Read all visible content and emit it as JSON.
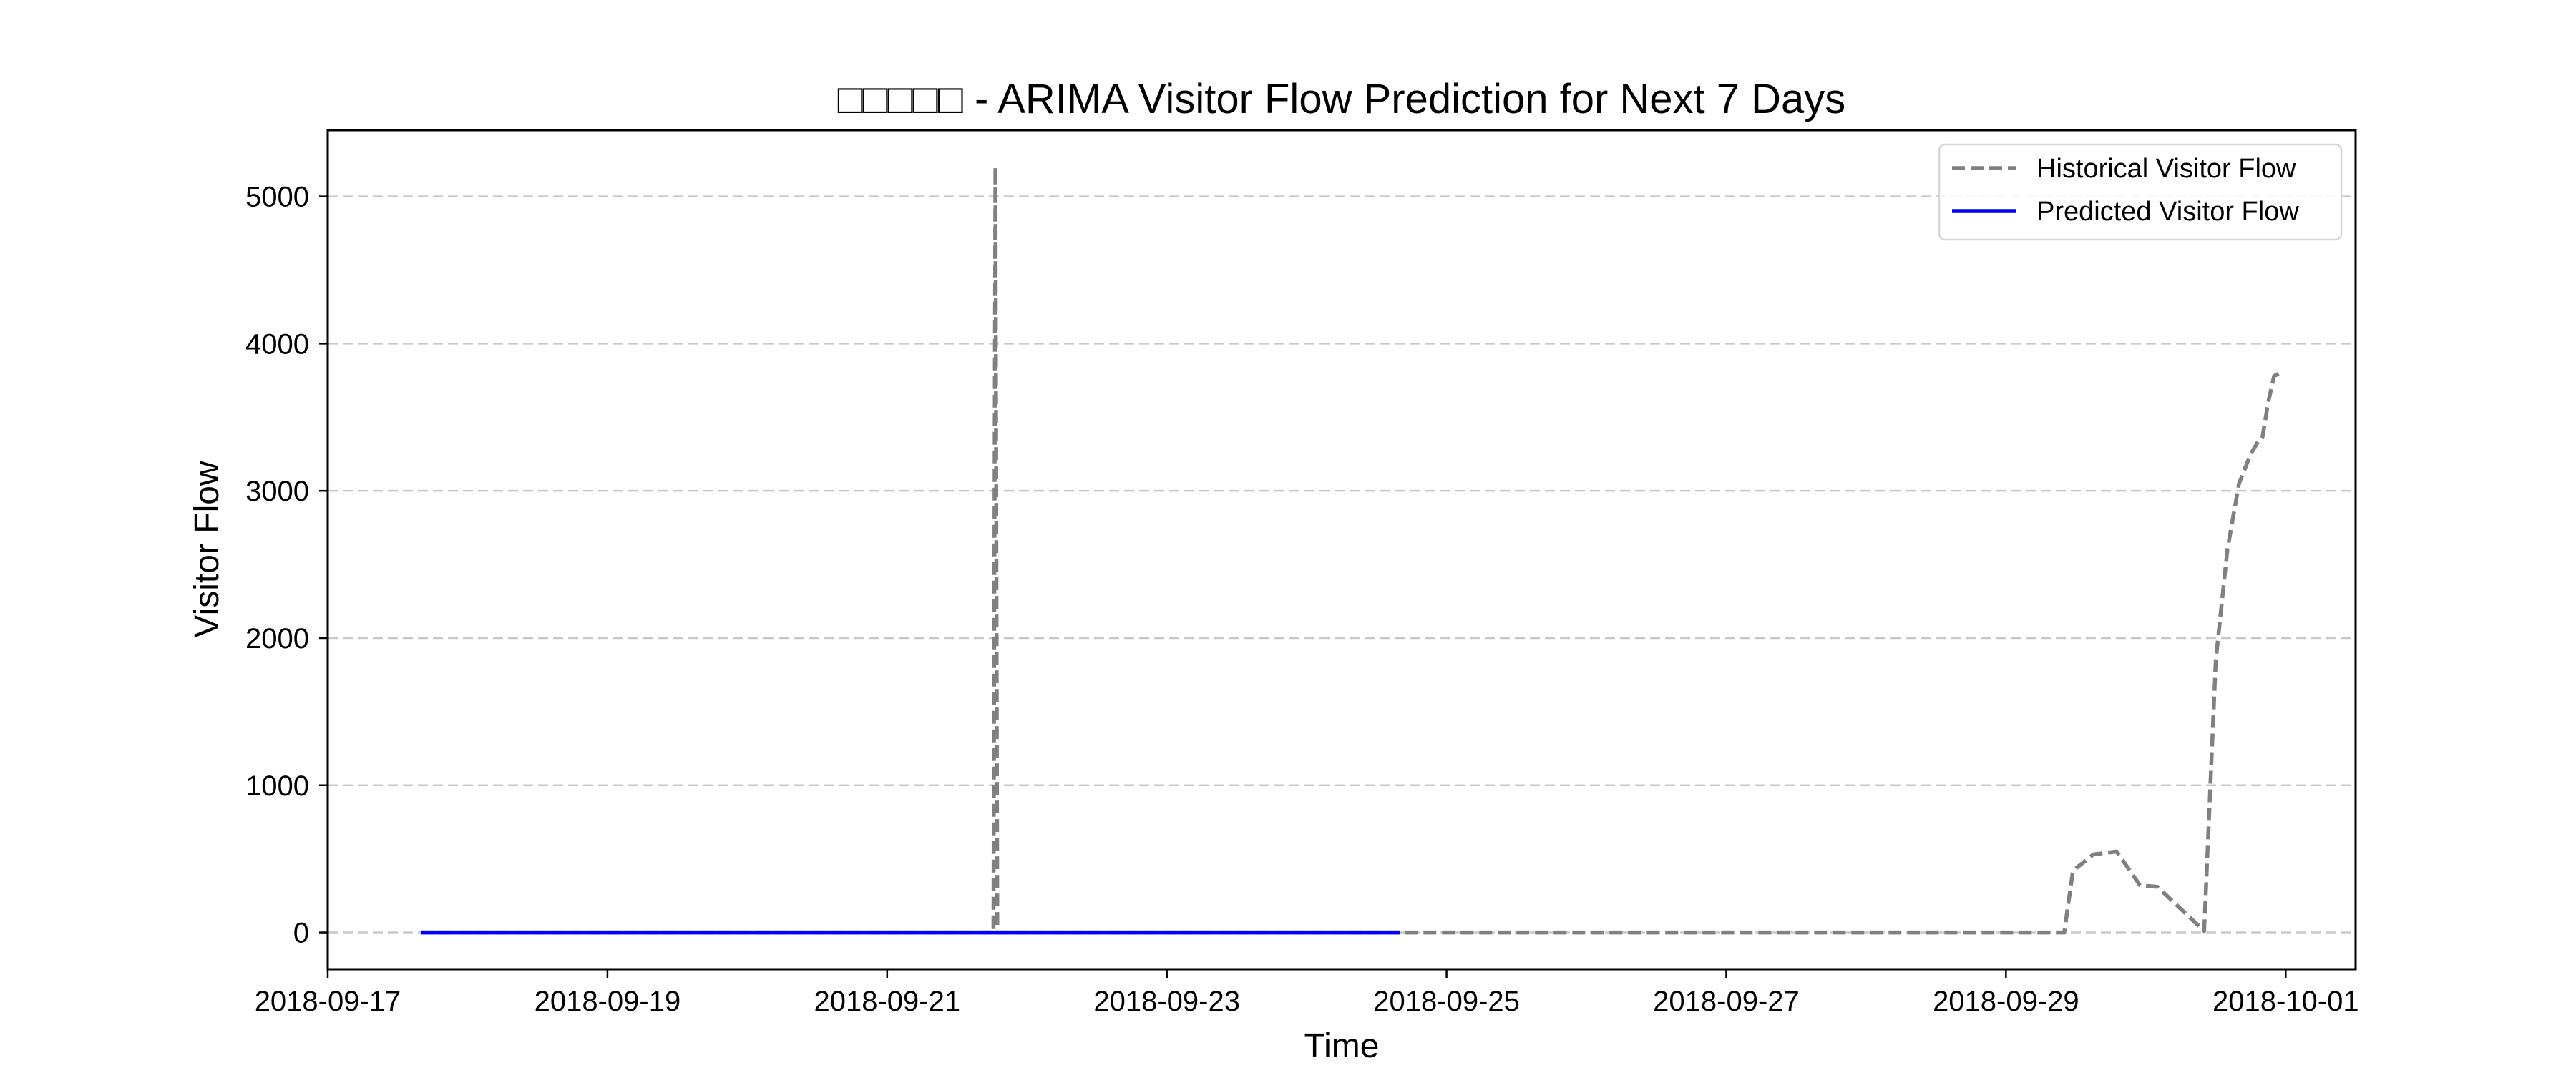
{
  "chart_data": {
    "type": "line",
    "title": "□□□□□ - ARIMA Visitor Flow Prediction for Next 7 Days",
    "xlabel": "Time",
    "ylabel": "Visitor Flow",
    "x_type": "date",
    "xlim": [
      "2018-09-17T00:00",
      "2018-10-01T12:00"
    ],
    "ylim": [
      -250,
      5450
    ],
    "x_ticks": [
      "2018-09-17",
      "2018-09-19",
      "2018-09-21",
      "2018-09-23",
      "2018-09-25",
      "2018-09-27",
      "2018-09-29",
      "2018-10-01"
    ],
    "y_ticks": [
      0,
      1000,
      2000,
      3000,
      4000,
      5000
    ],
    "grid": "y-dashed",
    "legend_position": "upper right",
    "series": [
      {
        "name": "Historical Visitor Flow",
        "style": "dashed",
        "color": "#808080",
        "points": [
          [
            "2018-09-17T16:00",
            0
          ],
          [
            "2018-09-21T18:15",
            0
          ],
          [
            "2018-09-21T18:35",
            5200
          ],
          [
            "2018-09-21T18:55",
            0
          ],
          [
            "2018-09-29T10:00",
            0
          ],
          [
            "2018-09-29T11:30",
            420
          ],
          [
            "2018-09-29T15:00",
            530
          ],
          [
            "2018-09-29T19:00",
            550
          ],
          [
            "2018-09-29T23:00",
            320
          ],
          [
            "2018-09-30T02:00",
            310
          ],
          [
            "2018-09-30T10:00",
            10
          ],
          [
            "2018-09-30T12:00",
            1850
          ],
          [
            "2018-09-30T14:00",
            2600
          ],
          [
            "2018-09-30T16:00",
            3050
          ],
          [
            "2018-09-30T18:00",
            3250
          ],
          [
            "2018-09-30T19:30",
            3350
          ],
          [
            "2018-09-30T20:00",
            3360
          ],
          [
            "2018-09-30T21:00",
            3600
          ],
          [
            "2018-09-30T22:00",
            3780
          ],
          [
            "2018-09-30T23:00",
            3800
          ]
        ]
      },
      {
        "name": "Predicted Visitor Flow",
        "style": "solid",
        "color": "#0000ff",
        "points": [
          [
            "2018-09-17T16:00",
            0
          ],
          [
            "2018-09-24T16:00",
            0
          ]
        ]
      }
    ]
  }
}
